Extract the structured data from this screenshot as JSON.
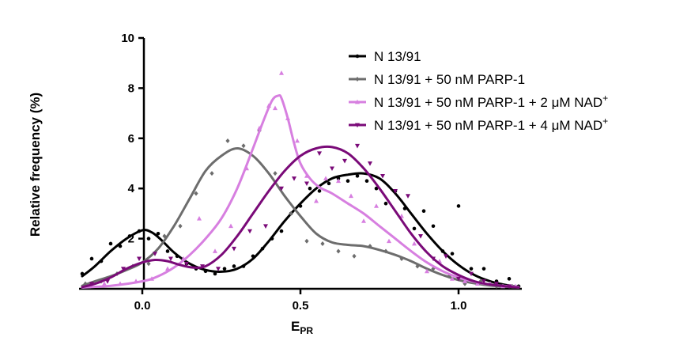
{
  "chart_data": {
    "type": "line",
    "title": "",
    "xlabel_main": "E",
    "xlabel_sub": "PR",
    "ylabel": "Relative frequency (%)",
    "xlim": [
      -0.2,
      1.2
    ],
    "ylim": [
      0,
      10
    ],
    "xticks": [
      0.0,
      0.5,
      1.0
    ],
    "xtick_labels": [
      "0.0",
      "0.5",
      "1.0"
    ],
    "yticks": [
      2,
      4,
      6,
      8,
      10
    ],
    "ytick_labels": [
      "2",
      "4",
      "6",
      "8",
      "10"
    ],
    "grid": false,
    "legend_position": "top-right",
    "series": [
      {
        "name": "N 13/91",
        "label_main": "N 13/91",
        "label_sup": "",
        "color": "#000000",
        "marker": "circle",
        "fit_x": [
          -0.19,
          -0.15,
          -0.1,
          -0.05,
          0.0,
          0.03,
          0.06,
          0.1,
          0.15,
          0.2,
          0.25,
          0.3,
          0.35,
          0.4,
          0.45,
          0.5,
          0.55,
          0.6,
          0.65,
          0.7,
          0.75,
          0.8,
          0.85,
          0.9,
          0.95,
          1.0,
          1.05,
          1.1,
          1.15,
          1.19
        ],
        "fit_y": [
          0.5,
          0.9,
          1.5,
          2.0,
          2.33,
          2.25,
          1.95,
          1.45,
          1.0,
          0.75,
          0.68,
          0.8,
          1.2,
          1.9,
          2.7,
          3.4,
          4.0,
          4.4,
          4.55,
          4.6,
          4.4,
          3.8,
          3.0,
          2.2,
          1.5,
          0.95,
          0.55,
          0.3,
          0.15,
          0.08
        ],
        "points_x": [
          -0.19,
          -0.16,
          -0.13,
          -0.1,
          -0.07,
          -0.04,
          -0.01,
          0.02,
          0.05,
          0.08,
          0.11,
          0.14,
          0.17,
          0.2,
          0.23,
          0.26,
          0.29,
          0.32,
          0.35,
          0.38,
          0.41,
          0.44,
          0.47,
          0.5,
          0.53,
          0.56,
          0.59,
          0.62,
          0.65,
          0.68,
          0.71,
          0.74,
          0.77,
          0.8,
          0.83,
          0.86,
          0.89,
          0.92,
          0.95,
          0.98,
          1.0,
          1.04,
          1.08,
          1.12,
          1.16,
          1.19
        ],
        "points_y": [
          0.6,
          1.2,
          1.1,
          1.8,
          1.7,
          2.1,
          2.3,
          2.0,
          2.2,
          1.5,
          1.3,
          1.0,
          0.8,
          0.7,
          0.6,
          0.8,
          0.9,
          0.9,
          1.3,
          1.6,
          2.0,
          2.3,
          3.0,
          3.3,
          4.0,
          3.9,
          4.2,
          4.4,
          4.3,
          4.5,
          4.3,
          4.0,
          3.4,
          3.9,
          3.2,
          2.4,
          3.1,
          2.5,
          1.5,
          1.4,
          3.3,
          0.8,
          0.8,
          0.3,
          0.4,
          0.1
        ]
      },
      {
        "name": "N 13/91 + 50 nM PARP-1",
        "label_main": "N 13/91 + 50 nM PARP-1",
        "label_sup": "",
        "color": "#6d6d6d",
        "marker": "diamond",
        "fit_x": [
          -0.19,
          -0.15,
          -0.1,
          -0.05,
          0.0,
          0.05,
          0.1,
          0.15,
          0.2,
          0.25,
          0.3,
          0.35,
          0.4,
          0.45,
          0.5,
          0.55,
          0.6,
          0.65,
          0.7,
          0.75,
          0.8,
          0.85,
          0.9,
          0.95,
          1.0,
          1.05,
          1.1,
          1.19
        ],
        "fit_y": [
          0.12,
          0.3,
          0.5,
          0.75,
          1.05,
          1.6,
          2.5,
          3.6,
          4.7,
          5.3,
          5.6,
          5.3,
          4.6,
          3.7,
          2.9,
          2.2,
          1.85,
          1.75,
          1.7,
          1.55,
          1.35,
          1.1,
          0.8,
          0.55,
          0.35,
          0.22,
          0.13,
          0.05
        ],
        "points_x": [
          -0.18,
          -0.13,
          -0.08,
          -0.03,
          0.02,
          0.07,
          0.12,
          0.17,
          0.22,
          0.27,
          0.32,
          0.37,
          0.42,
          0.47,
          0.52,
          0.57,
          0.62,
          0.67,
          0.72,
          0.77,
          0.82,
          0.87,
          0.92,
          0.97,
          1.02,
          1.07,
          1.12,
          1.17
        ],
        "points_y": [
          0.2,
          0.3,
          0.6,
          0.9,
          1.0,
          2.1,
          2.5,
          3.8,
          4.6,
          5.9,
          5.7,
          6.3,
          4.6,
          3.0,
          1.9,
          1.8,
          1.5,
          1.3,
          1.7,
          1.5,
          1.2,
          0.9,
          0.8,
          0.5,
          0.2,
          0.3,
          0.1,
          0.1
        ]
      },
      {
        "name": "N 13/91 + 50 nM PARP-1 + 2 µM NAD+",
        "label_main": "N 13/91 + 50 nM PARP-1 + 2 μM NAD",
        "label_sup": "+",
        "color": "#d77fe0",
        "marker": "triangle-up",
        "fit_x": [
          -0.19,
          -0.1,
          0.0,
          0.05,
          0.1,
          0.15,
          0.2,
          0.25,
          0.3,
          0.35,
          0.38,
          0.41,
          0.43,
          0.44,
          0.46,
          0.48,
          0.5,
          0.53,
          0.56,
          0.6,
          0.65,
          0.7,
          0.75,
          0.8,
          0.85,
          0.9,
          0.95,
          1.0,
          1.05,
          1.1,
          1.19
        ],
        "fit_y": [
          0.05,
          0.12,
          0.3,
          0.5,
          0.85,
          1.35,
          2.0,
          2.8,
          4.0,
          5.6,
          6.6,
          7.5,
          7.7,
          7.6,
          6.8,
          5.8,
          5.0,
          4.4,
          4.05,
          3.8,
          3.4,
          3.0,
          2.5,
          2.0,
          1.5,
          1.05,
          0.7,
          0.45,
          0.28,
          0.17,
          0.07
        ],
        "points_x": [
          -0.17,
          -0.12,
          -0.07,
          -0.02,
          0.03,
          0.08,
          0.13,
          0.18,
          0.23,
          0.28,
          0.33,
          0.37,
          0.4,
          0.42,
          0.44,
          0.46,
          0.49,
          0.52,
          0.55,
          0.58,
          0.62,
          0.66,
          0.7,
          0.74,
          0.78,
          0.82,
          0.86,
          0.9,
          0.94,
          0.98,
          1.02,
          1.06,
          1.1,
          1.14,
          1.18
        ],
        "points_y": [
          0.1,
          0.2,
          0.2,
          0.3,
          0.4,
          0.8,
          1.2,
          2.8,
          1.5,
          2.5,
          4.8,
          6.4,
          7.3,
          7.2,
          8.6,
          6.8,
          5.9,
          4.5,
          3.5,
          4.4,
          4.3,
          3.7,
          2.7,
          3.3,
          1.9,
          2.9,
          1.8,
          0.7,
          1.1,
          0.4,
          0.3,
          0.2,
          0.2,
          0.1,
          0.1
        ]
      },
      {
        "name": "N 13/91 + 50 nM PARP-1 + 4 µM NAD+",
        "label_main": "N 13/91 + 50 nM PARP-1 + 4 μM NAD",
        "label_sup": "+",
        "color": "#7a0a78",
        "marker": "triangle-down",
        "fit_x": [
          -0.19,
          -0.15,
          -0.1,
          -0.05,
          0.0,
          0.04,
          0.08,
          0.12,
          0.16,
          0.2,
          0.25,
          0.3,
          0.35,
          0.4,
          0.45,
          0.5,
          0.55,
          0.6,
          0.65,
          0.7,
          0.75,
          0.8,
          0.85,
          0.9,
          0.95,
          1.0,
          1.05,
          1.1,
          1.19
        ],
        "fit_y": [
          0.07,
          0.2,
          0.45,
          0.8,
          1.05,
          1.15,
          1.1,
          0.95,
          0.85,
          0.9,
          1.35,
          2.1,
          3.0,
          3.9,
          4.7,
          5.3,
          5.6,
          5.65,
          5.4,
          4.8,
          4.0,
          3.1,
          2.2,
          1.45,
          0.9,
          0.55,
          0.3,
          0.17,
          0.05
        ],
        "points_x": [
          -0.16,
          -0.11,
          -0.06,
          -0.01,
          0.04,
          0.09,
          0.14,
          0.19,
          0.24,
          0.29,
          0.34,
          0.39,
          0.44,
          0.48,
          0.52,
          0.56,
          0.6,
          0.64,
          0.68,
          0.72,
          0.76,
          0.8,
          0.84,
          0.88,
          0.92,
          0.96,
          1.0,
          1.04,
          1.08,
          1.12,
          1.16
        ],
        "points_y": [
          0.2,
          0.3,
          0.8,
          1.2,
          1.4,
          1.2,
          1.0,
          0.9,
          0.8,
          1.6,
          2.3,
          2.5,
          4.0,
          4.4,
          4.2,
          5.4,
          4.8,
          5.1,
          5.7,
          5.0,
          4.5,
          3.9,
          3.7,
          2.1,
          1.2,
          1.3,
          0.4,
          0.6,
          0.3,
          0.2,
          0.1
        ]
      }
    ]
  }
}
